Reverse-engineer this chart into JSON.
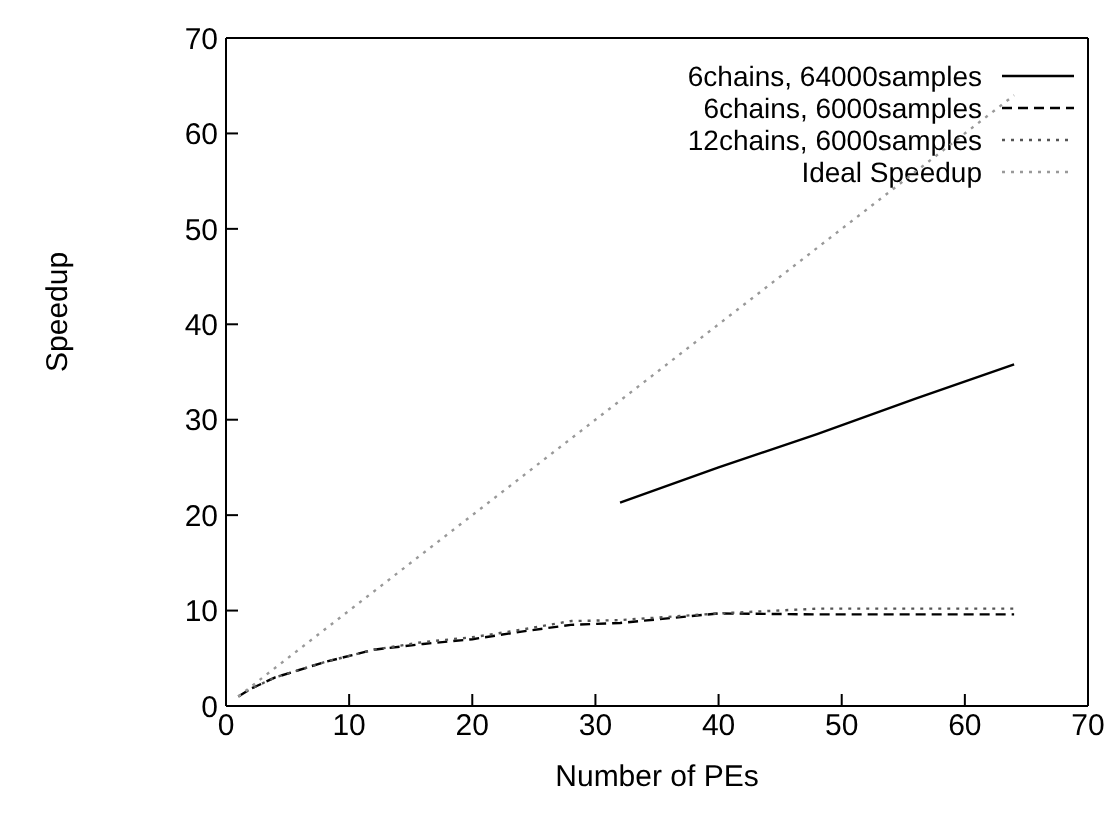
{
  "chart_data": {
    "type": "line",
    "xlabel": "Number of PEs",
    "ylabel": "Speedup",
    "xlim": [
      0,
      70
    ],
    "ylim": [
      0,
      70
    ],
    "xticks": [
      0,
      10,
      20,
      30,
      40,
      50,
      60,
      70
    ],
    "yticks": [
      0,
      10,
      20,
      30,
      40,
      50,
      60,
      70
    ],
    "legend": "top right",
    "marker": "none",
    "series": [
      {
        "name": "6chains, 64000samples",
        "color": "#000000",
        "line_style": "solid",
        "x": [
          32,
          40,
          48,
          56,
          64
        ],
        "values": [
          21.3,
          25,
          28.5,
          32.2,
          35.8
        ]
      },
      {
        "name": "6chains, 6000samples",
        "color": "#000000",
        "line_style": "dashed",
        "x": [
          1,
          2,
          4,
          8,
          12,
          16,
          20,
          24,
          28,
          32,
          40,
          48,
          56,
          64
        ],
        "values": [
          1,
          1.8,
          3,
          4.6,
          5.9,
          6.5,
          7,
          7.8,
          8.5,
          8.7,
          9.7,
          9.6,
          9.6,
          9.6
        ]
      },
      {
        "name": "12chains, 6000samples",
        "color": "#555555",
        "line_style": "dotted",
        "x": [
          1,
          2,
          4,
          8,
          12,
          16,
          20,
          24,
          28,
          32,
          40,
          48,
          56,
          64
        ],
        "values": [
          1,
          1.8,
          3,
          4.6,
          5.9,
          6.7,
          7.2,
          8,
          8.9,
          9,
          9.7,
          10.2,
          10.2,
          10.2
        ]
      },
      {
        "name": "Ideal Speedup",
        "color": "#999999",
        "line_style": "dotted",
        "x": [
          1,
          64
        ],
        "values": [
          1,
          64
        ]
      }
    ]
  }
}
